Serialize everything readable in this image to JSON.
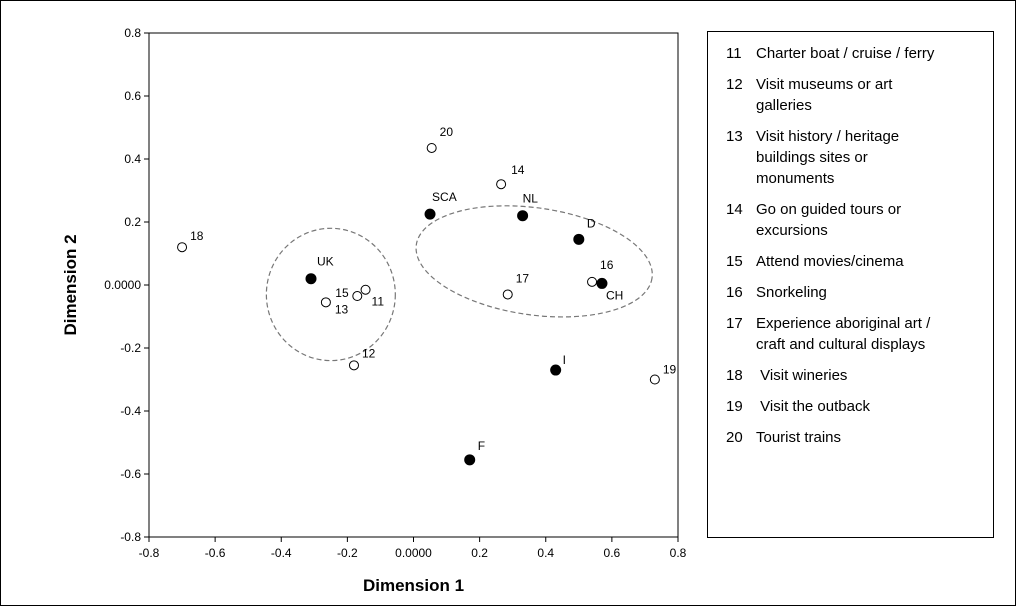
{
  "chart_data": {
    "type": "scatter",
    "xlabel": "Dimension 1",
    "ylabel": "Dimension 2",
    "xlim": [
      -0.8,
      0.8
    ],
    "ylim": [
      -0.8,
      0.8
    ],
    "x_ticks": [
      "-0.8",
      "-0.6",
      "-0.4",
      "-0.2",
      "0.0000",
      "0.2",
      "0.4",
      "0.6",
      "0.8"
    ],
    "y_ticks": [
      "0.8",
      "0.6",
      "0.4",
      "0.2",
      "0.0000",
      "-0.2",
      "-0.4",
      "-0.6",
      "-0.8"
    ],
    "x_tick_values": [
      -0.8,
      -0.6,
      -0.4,
      -0.2,
      0,
      0.2,
      0.4,
      0.6,
      0.8
    ],
    "y_tick_values": [
      0.8,
      0.6,
      0.4,
      0.2,
      0,
      -0.2,
      -0.4,
      -0.6,
      -0.8
    ],
    "grid": false,
    "legend_position": "right",
    "countries": [
      {
        "label": "UK",
        "x": -0.31,
        "y": 0.02
      },
      {
        "label": "SCA",
        "x": 0.05,
        "y": 0.225
      },
      {
        "label": "NL",
        "x": 0.33,
        "y": 0.22
      },
      {
        "label": "D",
        "x": 0.5,
        "y": 0.145
      },
      {
        "label": "CH",
        "x": 0.57,
        "y": 0.005
      },
      {
        "label": "I",
        "x": 0.43,
        "y": -0.27
      },
      {
        "label": "F",
        "x": 0.17,
        "y": -0.555
      }
    ],
    "activities": [
      {
        "label": "11",
        "x": -0.145,
        "y": -0.015
      },
      {
        "label": "12",
        "x": -0.18,
        "y": -0.255
      },
      {
        "label": "13",
        "x": -0.265,
        "y": -0.055
      },
      {
        "label": "14",
        "x": 0.265,
        "y": 0.32
      },
      {
        "label": "15",
        "x": -0.17,
        "y": -0.035
      },
      {
        "label": "16",
        "x": 0.54,
        "y": 0.01
      },
      {
        "label": "17",
        "x": 0.285,
        "y": -0.03
      },
      {
        "label": "18",
        "x": -0.7,
        "y": 0.12
      },
      {
        "label": "19",
        "x": 0.73,
        "y": -0.3
      },
      {
        "label": "20",
        "x": 0.055,
        "y": 0.435
      }
    ],
    "clusters": [
      {
        "cx": -0.25,
        "cy": -0.03,
        "rx": 0.195,
        "ry": 0.21
      },
      {
        "cx": 0.365,
        "cy": 0.075,
        "rx": 0.36,
        "ry": 0.17,
        "rotate": 8
      }
    ],
    "marker_colors": {
      "country": "#000000",
      "activity": "#ffffff",
      "ellipse": "#777777"
    }
  },
  "legend": {
    "items": [
      {
        "num": "11",
        "text": "Charter boat / cruise / ferry"
      },
      {
        "num": "12",
        "text": "Visit museums or art\ngalleries"
      },
      {
        "num": "13",
        "text": "Visit history / heritage\nbuildings sites or\nmonuments"
      },
      {
        "num": "14",
        "text": "Go on guided tours or\nexcursions"
      },
      {
        "num": "15",
        "text": "Attend movies/cinema"
      },
      {
        "num": "16",
        "text": "Snorkeling"
      },
      {
        "num": "17",
        "text": "Experience aboriginal art /\ncraft and cultural displays"
      },
      {
        "num": "18",
        "text": " Visit wineries"
      },
      {
        "num": "19",
        "text": " Visit the outback"
      },
      {
        "num": "20",
        "text": "Tourist trains"
      }
    ]
  }
}
